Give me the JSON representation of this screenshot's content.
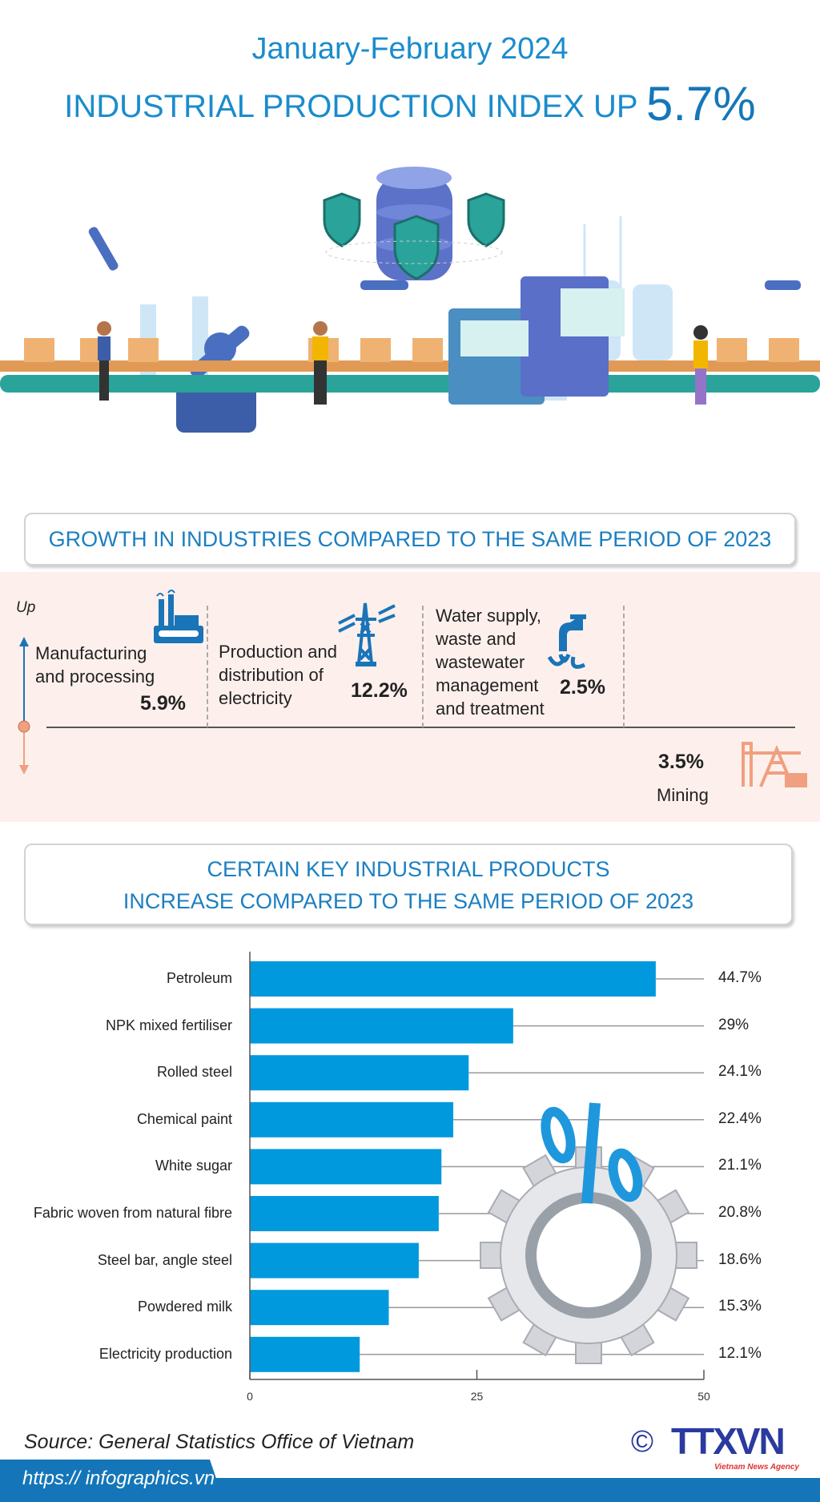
{
  "header": {
    "title_line1": "January-February 2024",
    "title_line2": "INDUSTRIAL PRODUCTION INDEX UP",
    "headline_value": "5.7%"
  },
  "growth": {
    "heading": "GROWTH IN INDUSTRIES COMPARED TO THE SAME PERIOD OF 2023",
    "up_label": "Up",
    "items": [
      {
        "name_lines": [
          "Manufacturing",
          "and processing"
        ],
        "value": "5.9%",
        "direction": "up",
        "icon": "factory-icon"
      },
      {
        "name_lines": [
          "Production and",
          "distribution of",
          "electricity"
        ],
        "value": "12.2%",
        "direction": "up",
        "icon": "power-tower-icon"
      },
      {
        "name_lines": [
          "Water supply,",
          "waste and",
          "wastewater",
          "management",
          "and treatment"
        ],
        "value": "2.5%",
        "direction": "up",
        "icon": "water-tap-icon"
      },
      {
        "name_lines": [
          "Mining"
        ],
        "value": "3.5%",
        "direction": "down",
        "icon": "oil-pump-icon"
      }
    ],
    "colors": {
      "up": "#1a74b8",
      "down": "#f0a080",
      "background": "#fdf0ec"
    }
  },
  "products": {
    "heading_line1": "CERTAIN KEY INDUSTRIAL PRODUCTS",
    "heading_line2": "INCREASE COMPARED TO THE SAME PERIOD OF 2023"
  },
  "chart_data": {
    "type": "bar",
    "orientation": "horizontal",
    "categories": [
      "Petroleum",
      "NPK mixed fertiliser",
      "Rolled steel",
      "Chemical paint",
      "White sugar",
      "Fabric woven from natural fibre",
      "Steel bar, angle steel",
      "Powdered milk",
      "Electricity production"
    ],
    "values": [
      44.7,
      29,
      24.1,
      22.4,
      21.1,
      20.8,
      18.6,
      15.3,
      12.1
    ],
    "value_labels": [
      "44.7%",
      "29%",
      "24.1%",
      "22.4%",
      "21.1%",
      "20.8%",
      "18.6%",
      "15.3%",
      "12.1%"
    ],
    "xlim": [
      0,
      50
    ],
    "x_ticks": [
      "0",
      "25",
      "50"
    ],
    "bar_color": "#0099dd",
    "grid": false
  },
  "footer": {
    "source": "Source: General Statistics Office of Vietnam",
    "url": "https:// infographics.vn",
    "logo_text": "TTXVN",
    "logo_subtext": "Vietnam News Agency"
  }
}
